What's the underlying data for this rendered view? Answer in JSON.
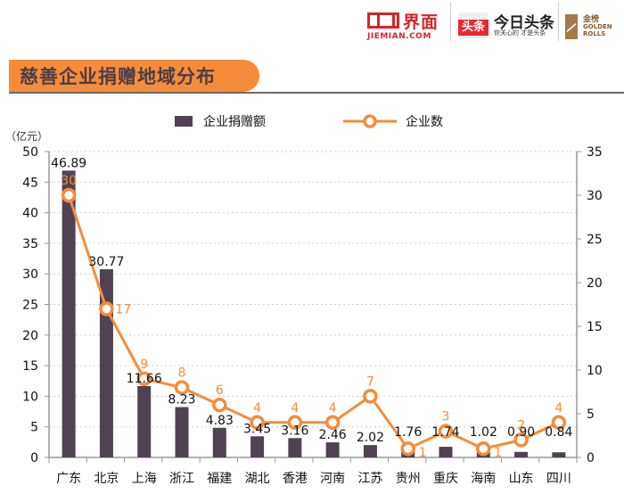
{
  "header": {
    "logos": {
      "jiemian_cn": "界面",
      "jiemian_en": "JIEMIAN.COM",
      "toutiao_badge": "头条",
      "toutiao_cn": "今日头条",
      "toutiao_slogan": "你关心的 才是头条",
      "golden_cn": "金榜",
      "golden_en": "GOLDEN ROLLS"
    },
    "title": "慈善企业捐赠地域分布"
  },
  "colors": {
    "bar": "#514253",
    "line": "#f58c3a",
    "title_band": "#f58c3a",
    "title_text": "#4e3d48"
  },
  "chart_data": {
    "type": "bar+line",
    "title": "慈善企业捐赠地域分布",
    "categories": [
      "广东",
      "北京",
      "上海",
      "浙江",
      "福建",
      "湖北",
      "香港",
      "河南",
      "江苏",
      "贵州",
      "重庆",
      "海南",
      "山东",
      "四川"
    ],
    "series": [
      {
        "name": "企业捐赠额",
        "type": "bar",
        "axis": "left",
        "values": [
          46.89,
          30.77,
          11.66,
          8.23,
          4.83,
          3.45,
          3.16,
          2.46,
          2.02,
          1.76,
          1.74,
          1.02,
          0.9,
          0.84
        ],
        "labels": [
          "46.89",
          "30.77",
          "11.66",
          "8.23",
          "4.83",
          "3.45",
          "3.16",
          "2.46",
          "2.02",
          "1.76",
          "1.74",
          "1.02",
          "0.90",
          "0.84"
        ]
      },
      {
        "name": "企业数",
        "type": "line",
        "axis": "right",
        "values": [
          30,
          17,
          9,
          8,
          6,
          4,
          4,
          4,
          7,
          1,
          3,
          1,
          2,
          4
        ],
        "labels": [
          "30",
          "17",
          "9",
          "8",
          "6",
          "4",
          "4",
          "4",
          "7",
          "1",
          "3",
          "1",
          "2",
          "4"
        ]
      }
    ],
    "y_left": {
      "label": "（亿元）",
      "range": [
        0,
        50
      ],
      "ticks": [
        "0",
        "5",
        "10",
        "15",
        "20",
        "25",
        "30",
        "35",
        "40",
        "45",
        "50"
      ]
    },
    "y_right": {
      "label": "",
      "range": [
        0,
        35
      ],
      "ticks": [
        "0",
        "5",
        "10",
        "15",
        "20",
        "25",
        "30",
        "35"
      ]
    },
    "grid": "dotted-horizontal",
    "legend": {
      "placement": "top-center",
      "items": [
        "企业捐赠额",
        "企业数"
      ]
    }
  }
}
